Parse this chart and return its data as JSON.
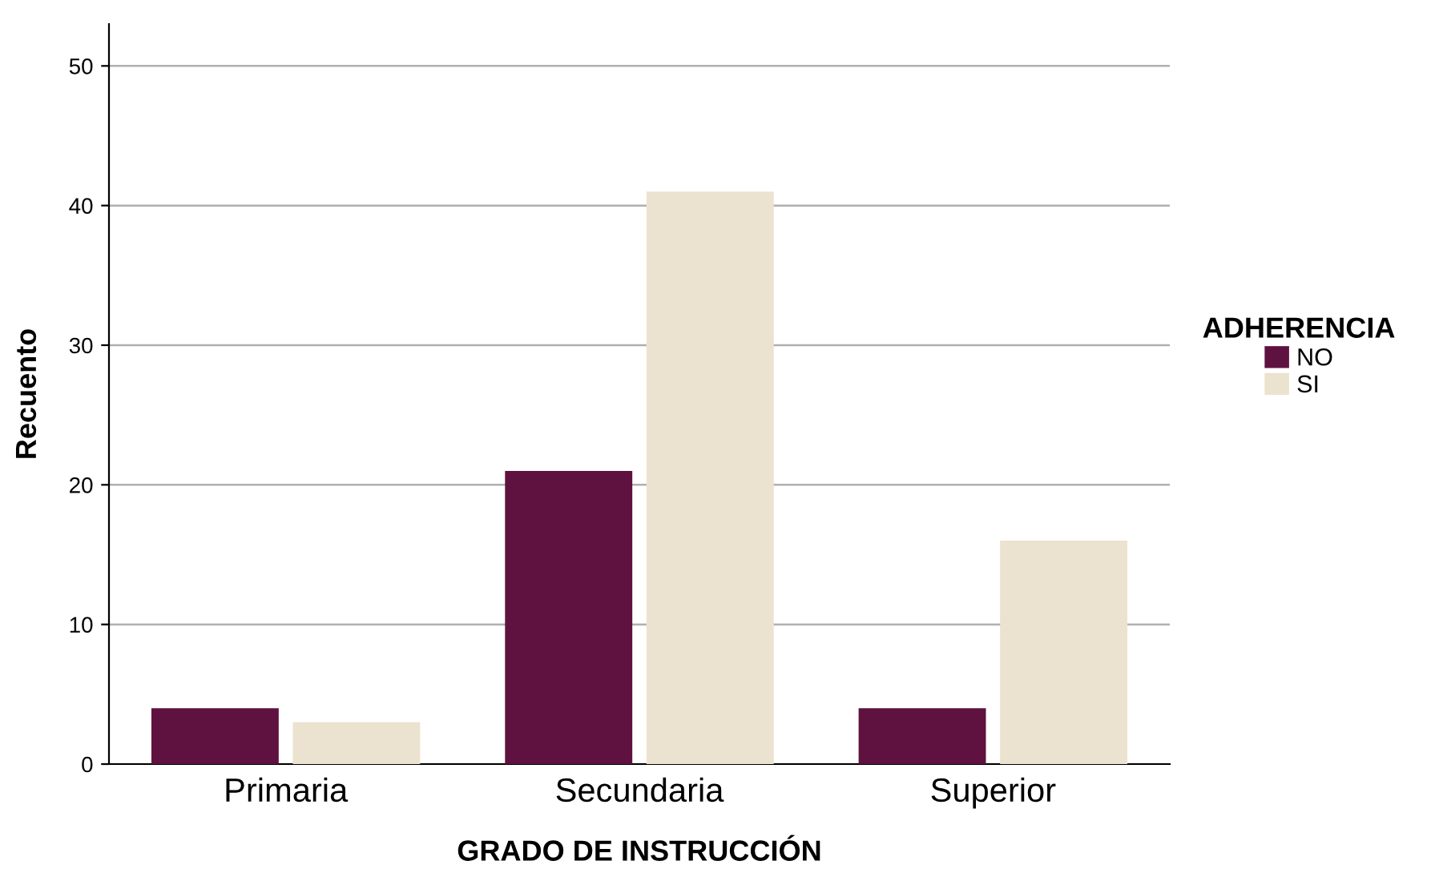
{
  "chart_data": {
    "type": "bar",
    "xlabel": "GRADO DE INSTRUCCIÓN",
    "ylabel": "Recuento",
    "legend_title": "ADHERENCIA",
    "categories": [
      "Primaria",
      "Secundaria",
      "Superior"
    ],
    "series": [
      {
        "name": "NO",
        "color": "#5f1240",
        "values": [
          4,
          21,
          4
        ]
      },
      {
        "name": "SI",
        "color": "#ebe3cf",
        "values": [
          3,
          41,
          16
        ]
      }
    ],
    "ylim": [
      0,
      53
    ],
    "yticks": [
      0,
      10,
      20,
      30,
      40,
      50
    ],
    "grid": "y",
    "legend": "right"
  }
}
